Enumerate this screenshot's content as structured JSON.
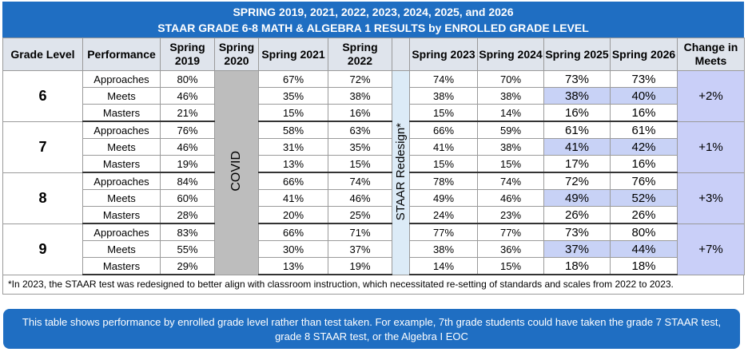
{
  "title": [
    "SPRING 2019, 2021, 2022, 2023, 2024, 2025, and 2026",
    "STAAR GRADE 6-8 MATH & ALGEBRA 1 RESULTS by ENROLLED GRADE LEVEL"
  ],
  "table": {
    "headers": [
      "Grade Level",
      "Performance",
      "Spring 2019",
      "Spring 2020",
      "Spring 2021",
      "Spring 2022",
      "Spring 2023",
      "Spring 2024",
      "Spring 2025",
      "Spring 2026",
      "Change in Meets"
    ],
    "covid": "COVID",
    "redesign": "STAAR Redesign*",
    "groups": [
      {
        "grade": "6",
        "change": "+2%",
        "rows": [
          [
            "Approaches",
            "80%",
            "67%",
            "72%",
            "74%",
            "70%",
            "73%",
            "73%"
          ],
          [
            "Meets",
            "46%",
            "35%",
            "38%",
            "38%",
            "38%",
            "38%",
            "40%"
          ],
          [
            "Masters",
            "21%",
            "15%",
            "16%",
            "15%",
            "14%",
            "16%",
            "16%"
          ]
        ]
      },
      {
        "grade": "7",
        "change": "+1%",
        "rows": [
          [
            "Approaches",
            "76%",
            "58%",
            "63%",
            "66%",
            "59%",
            "61%",
            "61%"
          ],
          [
            "Meets",
            "46%",
            "31%",
            "35%",
            "41%",
            "38%",
            "41%",
            "42%"
          ],
          [
            "Masters",
            "19%",
            "13%",
            "15%",
            "15%",
            "15%",
            "17%",
            "16%"
          ]
        ]
      },
      {
        "grade": "8",
        "change": "+3%",
        "rows": [
          [
            "Approaches",
            "84%",
            "66%",
            "74%",
            "78%",
            "74%",
            "72%",
            "76%"
          ],
          [
            "Meets",
            "60%",
            "41%",
            "46%",
            "49%",
            "46%",
            "49%",
            "52%"
          ],
          [
            "Masters",
            "28%",
            "20%",
            "25%",
            "24%",
            "23%",
            "26%",
            "26%"
          ]
        ]
      },
      {
        "grade": "9",
        "change": "+7%",
        "rows": [
          [
            "Approaches",
            "83%",
            "66%",
            "71%",
            "77%",
            "77%",
            "73%",
            "80%"
          ],
          [
            "Meets",
            "55%",
            "30%",
            "37%",
            "38%",
            "36%",
            "37%",
            "44%"
          ],
          [
            "Masters",
            "29%",
            "13%",
            "19%",
            "14%",
            "15%",
            "18%",
            "18%"
          ]
        ]
      }
    ]
  },
  "footnote": "*In 2023, the STAAR test was redesigned to better align with classroom instruction, which necessitated re-setting of standards and scales from 2022 to 2023.",
  "callout": "This table shows performance by enrolled grade level rather than test taken. For example, 7th grade students could have taken the grade 7 STAAR test, grade 8 STAAR test, or the Algebra I EOC"
}
